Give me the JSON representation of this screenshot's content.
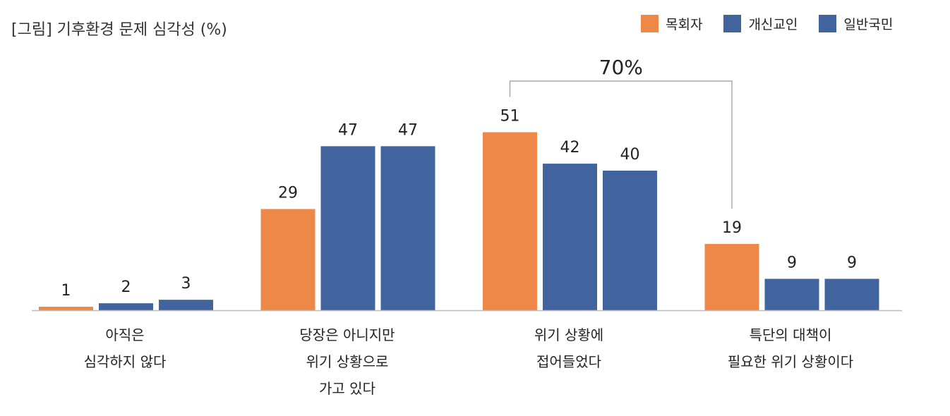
{
  "chart_data": {
    "type": "bar",
    "title": "[그림] 기후환경 문제 심각성 (%)",
    "categories": [
      "아직은\n심각하지 않다",
      "당장은 아니지만\n위기 상황으로\n가고 있다",
      "위기 상황에\n접어들었다",
      "특단의 대책이\n필요한 위기 상황이다"
    ],
    "series": [
      {
        "name": "목회자",
        "color": "#ee8848",
        "values": [
          1,
          29,
          51,
          19
        ]
      },
      {
        "name": "개신교인",
        "color": "#41649e",
        "values": [
          2,
          47,
          42,
          9
        ]
      },
      {
        "name": "일반국민",
        "color": "#41649e",
        "values": [
          3,
          47,
          40,
          9
        ]
      }
    ],
    "ylim": [
      0,
      60
    ],
    "grid": false,
    "legend": "top-right",
    "annotation": {
      "text": "70%",
      "from_category": 2,
      "to_category": 3,
      "series": 0
    }
  }
}
